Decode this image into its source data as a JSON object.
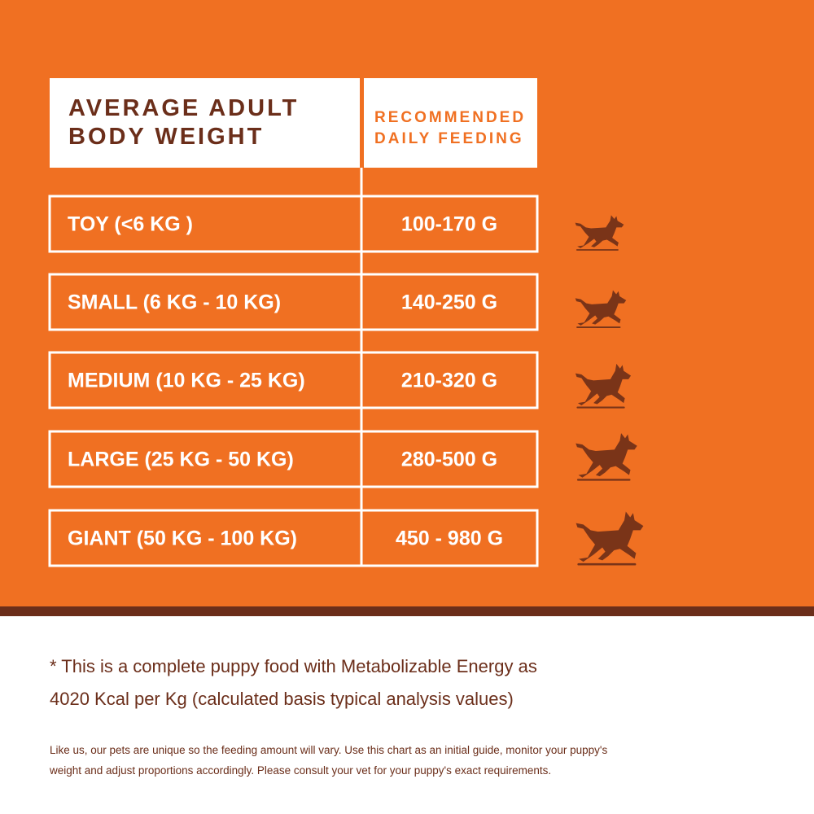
{
  "header": {
    "left": [
      "AVERAGE ADULT",
      "BODY WEIGHT"
    ],
    "right": [
      "RECOMMENDED",
      "DAILY FEEDING"
    ]
  },
  "table": {
    "rows": [
      [
        "TOY (<6 KG )",
        "100-170 G"
      ],
      [
        "SMALL (6 KG - 10 KG)",
        "140-250 G"
      ],
      [
        "MEDIUM (10 KG - 25 KG)",
        "210-320 G"
      ],
      [
        "LARGE (25 KG - 50 KG)",
        "280-500 G"
      ],
      [
        "GIANT (50 KG - 100 KG)",
        "450 - 980 G"
      ]
    ]
  },
  "note": [
    "* This is a complete puppy food with Metabolizable Energy as",
    "4020 Kcal per Kg (calculated basis typical analysis values)"
  ],
  "disclaimer": [
    "Like us, our pets are unique so the feeding amount will vary. Use this chart as an initial guide, monitor your puppy's",
    "weight and adjust proportions accordingly. Please consult your vet for your puppy's exact requirements."
  ]
}
